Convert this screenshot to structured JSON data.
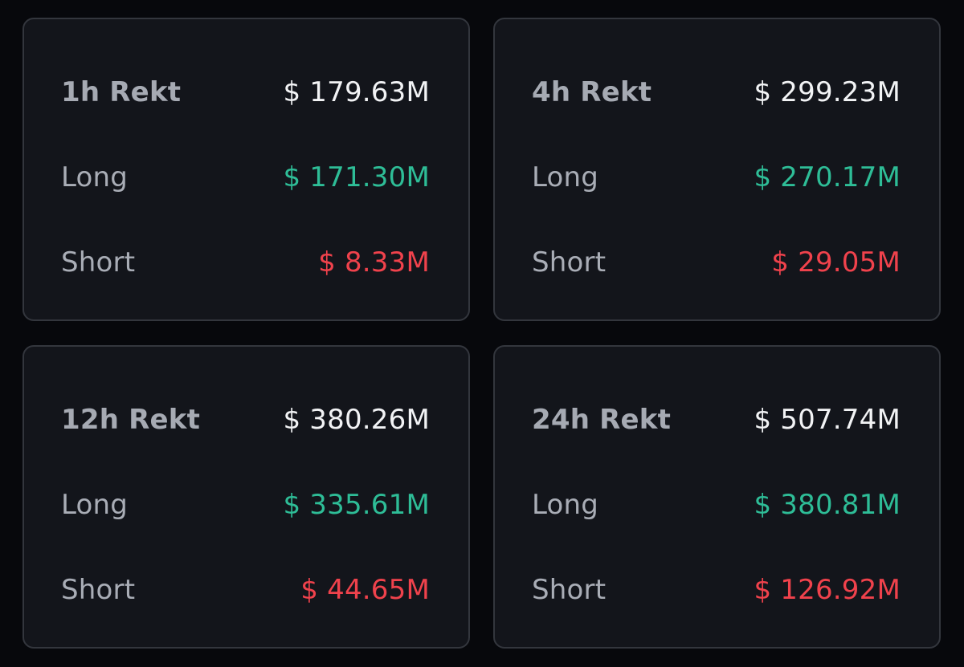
{
  "colors": {
    "background": "#07080c",
    "card": "#13151b",
    "border": "#33363d",
    "label": "#a9adb6",
    "total": "#f2f3f5",
    "long": "#2ebd97",
    "short": "#f0424c"
  },
  "cards": [
    {
      "title": "1h Rekt",
      "total": "$ 179.63M",
      "long_label": "Long",
      "long": "$ 171.30M",
      "short_label": "Short",
      "short": "$ 8.33M"
    },
    {
      "title": "4h Rekt",
      "total": "$ 299.23M",
      "long_label": "Long",
      "long": "$ 270.17M",
      "short_label": "Short",
      "short": "$ 29.05M"
    },
    {
      "title": "12h Rekt",
      "total": "$ 380.26M",
      "long_label": "Long",
      "long": "$ 335.61M",
      "short_label": "Short",
      "short": "$ 44.65M"
    },
    {
      "title": "24h Rekt",
      "total": "$ 507.74M",
      "long_label": "Long",
      "long": "$ 380.81M",
      "short_label": "Short",
      "short": "$ 126.92M"
    }
  ]
}
